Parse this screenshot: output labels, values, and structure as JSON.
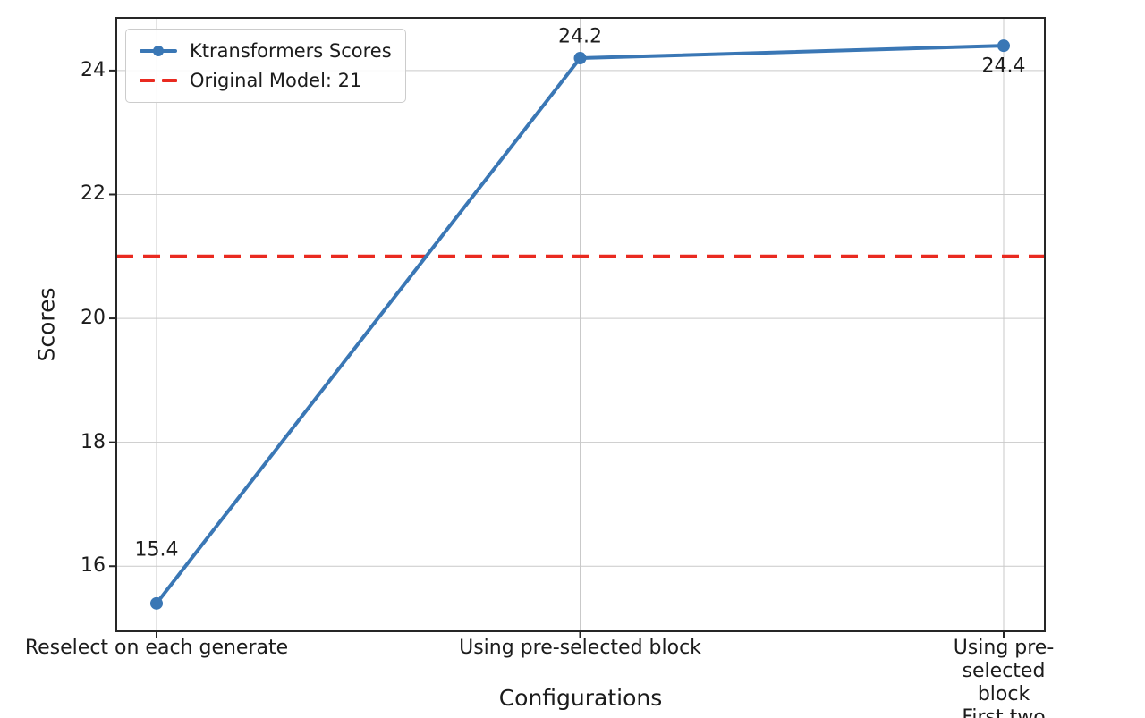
{
  "figure": {
    "background": "#ffffff",
    "grid_color": "#c9c9c9",
    "spine_color": "#262626",
    "text_color": "#1c1c1c"
  },
  "chart_data": {
    "type": "line",
    "title": "",
    "xlabel": "Configurations",
    "ylabel": "Scores",
    "categories": [
      "Reselect on each generate",
      "Using pre-selected block",
      "Using pre-selected block\nFirst two layers dense"
    ],
    "series": [
      {
        "name": "Ktransformers Scores",
        "values": [
          15.4,
          24.2,
          24.4
        ],
        "color": "#3a77b5",
        "marker": "circle",
        "style": "solid"
      }
    ],
    "reference_line": {
      "label": "Original Model: 21",
      "value": 21,
      "color": "#e92a20",
      "style": "dashed"
    },
    "data_labels": [
      "15.4",
      "24.2",
      "24.4"
    ],
    "yticks": [
      16,
      18,
      20,
      22,
      24
    ],
    "ylim": [
      14.95,
      24.85
    ],
    "grid": true,
    "legend_position": "upper left"
  }
}
